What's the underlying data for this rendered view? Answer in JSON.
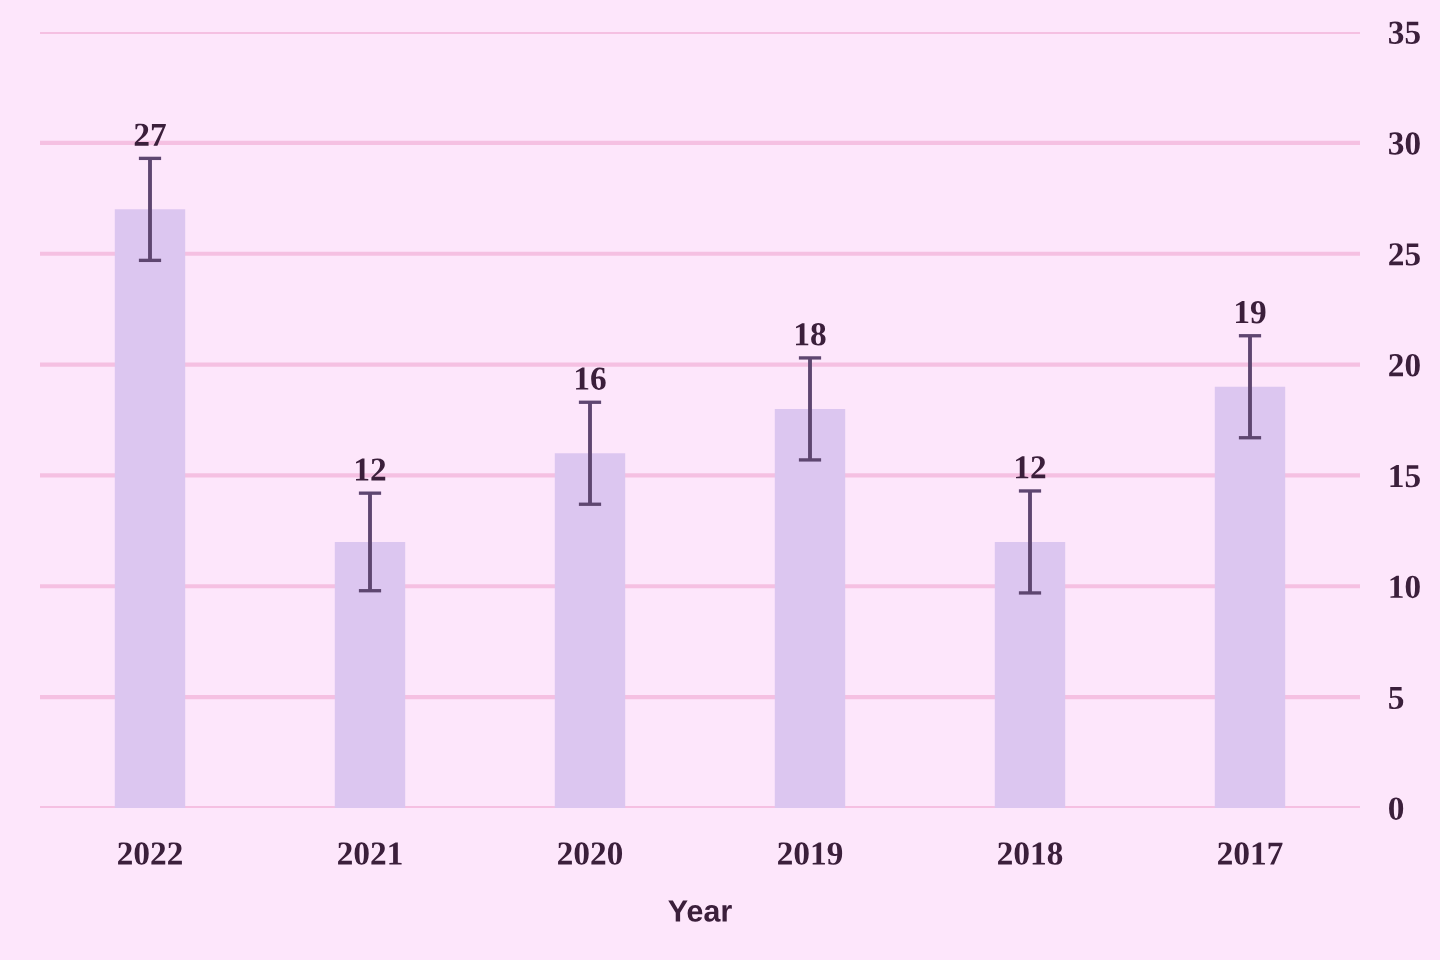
{
  "chart_data": {
    "type": "bar",
    "categories": [
      "2022",
      "2021",
      "2020",
      "2019",
      "2018",
      "2017"
    ],
    "values": [
      27,
      12,
      16,
      18,
      12,
      19
    ],
    "errors": [
      2.3,
      2.2,
      2.3,
      2.3,
      2.3,
      2.3
    ],
    "color": "#dcc6f0",
    "xlabel": "Year",
    "ylim": [
      0,
      35
    ],
    "yticks": [
      0,
      5,
      10,
      15,
      20,
      25,
      30,
      35
    ],
    "grid": "y",
    "data_labels": true
  }
}
